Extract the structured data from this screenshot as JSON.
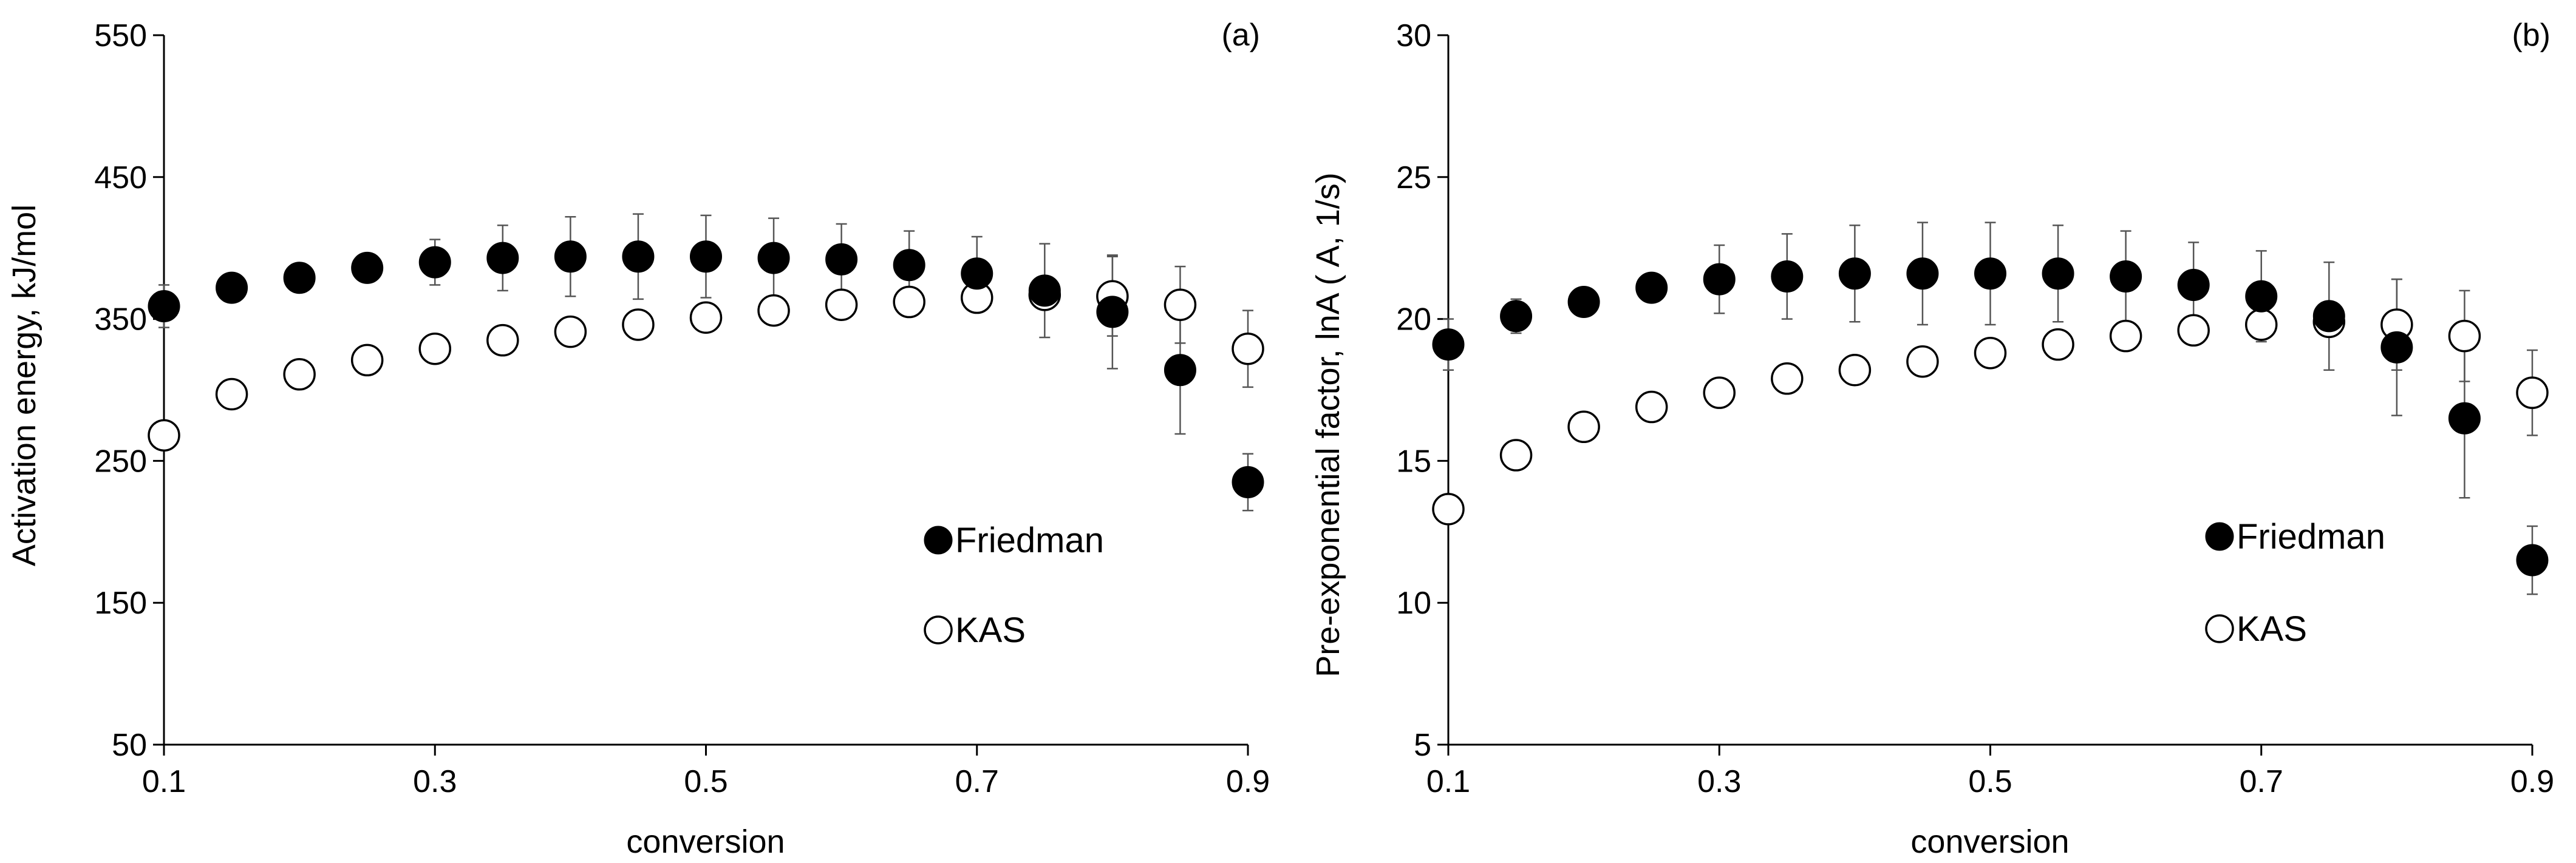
{
  "chart_data": [
    {
      "type": "scatter",
      "panel_label": "(a)",
      "xlabel": "conversion",
      "ylabel": "Activation energy, kJ/mol",
      "xlim": [
        0.1,
        0.9
      ],
      "ylim": [
        50,
        550
      ],
      "xticks": [
        "0.1",
        "0.3",
        "0.5",
        "0.7",
        "0.9"
      ],
      "yticks": [
        "50",
        "150",
        "250",
        "350",
        "450",
        "550"
      ],
      "legend": {
        "position": "lower-right"
      },
      "series": [
        {
          "name": "Friedman",
          "marker": "filled",
          "x": [
            0.1,
            0.15,
            0.2,
            0.25,
            0.3,
            0.35,
            0.4,
            0.45,
            0.5,
            0.55,
            0.6,
            0.65,
            0.7,
            0.75,
            0.8,
            0.85,
            0.9
          ],
          "y": [
            359,
            372,
            379,
            386,
            390,
            393,
            394,
            394,
            394,
            393,
            392,
            388,
            382,
            370,
            355,
            314,
            235
          ],
          "err": [
            15,
            8,
            8,
            10,
            16,
            23,
            28,
            30,
            29,
            28,
            25,
            24,
            26,
            33,
            40,
            45,
            20
          ]
        },
        {
          "name": "KAS",
          "marker": "open",
          "x": [
            0.1,
            0.15,
            0.2,
            0.25,
            0.3,
            0.35,
            0.4,
            0.45,
            0.5,
            0.55,
            0.6,
            0.65,
            0.7,
            0.75,
            0.8,
            0.85,
            0.9
          ],
          "y": [
            268,
            297,
            311,
            321,
            329,
            335,
            341,
            346,
            351,
            356,
            360,
            362,
            365,
            367,
            366,
            360,
            329
          ],
          "err": [
            0,
            0,
            0,
            0,
            0,
            0,
            0,
            0,
            0,
            0,
            0,
            0,
            0,
            0,
            28,
            27,
            27
          ]
        }
      ]
    },
    {
      "type": "scatter",
      "panel_label": "(b)",
      "xlabel": "conversion",
      "ylabel": "Pre-exponential factor, lnA ( A, 1/s)",
      "xlim": [
        0.1,
        0.9
      ],
      "ylim": [
        5,
        30
      ],
      "xticks": [
        "0.1",
        "0.3",
        "0.5",
        "0.7",
        "0.9"
      ],
      "yticks": [
        "5",
        "10",
        "15",
        "20",
        "25",
        "30"
      ],
      "legend": {
        "position": "lower-right"
      },
      "series": [
        {
          "name": "Friedman",
          "marker": "filled",
          "x": [
            0.1,
            0.15,
            0.2,
            0.25,
            0.3,
            0.35,
            0.4,
            0.45,
            0.5,
            0.55,
            0.6,
            0.65,
            0.7,
            0.75,
            0.8,
            0.85,
            0.9
          ],
          "y": [
            19.1,
            20.1,
            20.6,
            21.1,
            21.4,
            21.5,
            21.6,
            21.6,
            21.6,
            21.6,
            21.5,
            21.2,
            20.8,
            20.1,
            19.0,
            16.5,
            11.5
          ],
          "err": [
            0.9,
            0.6,
            0.4,
            0.5,
            1.2,
            1.5,
            1.7,
            1.8,
            1.8,
            1.7,
            1.6,
            1.5,
            1.6,
            1.9,
            2.4,
            2.8,
            1.2
          ]
        },
        {
          "name": "KAS",
          "marker": "open",
          "x": [
            0.1,
            0.15,
            0.2,
            0.25,
            0.3,
            0.35,
            0.4,
            0.45,
            0.5,
            0.55,
            0.6,
            0.65,
            0.7,
            0.75,
            0.8,
            0.85,
            0.9
          ],
          "y": [
            13.3,
            15.2,
            16.2,
            16.9,
            17.4,
            17.9,
            18.2,
            18.5,
            18.8,
            19.1,
            19.4,
            19.6,
            19.8,
            19.9,
            19.8,
            19.4,
            17.4
          ],
          "err": [
            0,
            0,
            0,
            0,
            0,
            0,
            0,
            0,
            0,
            0,
            0,
            0,
            0,
            0,
            1.6,
            1.6,
            1.5
          ]
        }
      ]
    }
  ]
}
